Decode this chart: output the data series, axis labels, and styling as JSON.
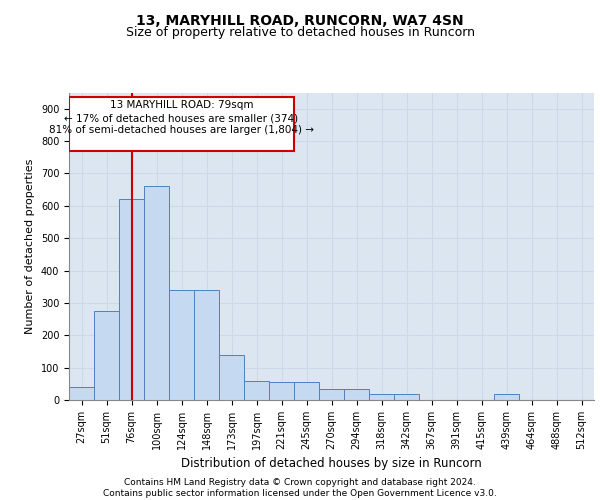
{
  "title": "13, MARYHILL ROAD, RUNCORN, WA7 4SN",
  "subtitle": "Size of property relative to detached houses in Runcorn",
  "xlabel": "Distribution of detached houses by size in Runcorn",
  "ylabel": "Number of detached properties",
  "footer_line1": "Contains HM Land Registry data © Crown copyright and database right 2024.",
  "footer_line2": "Contains public sector information licensed under the Open Government Licence v3.0.",
  "property_label": "13 MARYHILL ROAD: 79sqm",
  "annotation_line1": "← 17% of detached houses are smaller (374)",
  "annotation_line2": "81% of semi-detached houses are larger (1,804) →",
  "bin_labels": [
    "27sqm",
    "51sqm",
    "76sqm",
    "100sqm",
    "124sqm",
    "148sqm",
    "173sqm",
    "197sqm",
    "221sqm",
    "245sqm",
    "270sqm",
    "294sqm",
    "318sqm",
    "342sqm",
    "367sqm",
    "391sqm",
    "415sqm",
    "439sqm",
    "464sqm",
    "488sqm",
    "512sqm"
  ],
  "bar_values": [
    40,
    275,
    620,
    660,
    340,
    340,
    140,
    60,
    55,
    55,
    35,
    35,
    20,
    20,
    0,
    0,
    0,
    20,
    0,
    0,
    0
  ],
  "bar_color": "#c5d9f1",
  "bar_edge_color": "#4f81bd",
  "vline_color": "#cc0000",
  "vline_x_bin": 2,
  "ylim": [
    0,
    950
  ],
  "yticks": [
    0,
    100,
    200,
    300,
    400,
    500,
    600,
    700,
    800,
    900
  ],
  "grid_color": "#d0d8e8",
  "plot_bg_color": "#dce6f1",
  "title_fontsize": 10,
  "subtitle_fontsize": 9,
  "xlabel_fontsize": 8.5,
  "ylabel_fontsize": 8,
  "tick_fontsize": 7,
  "footer_fontsize": 6.5,
  "annot_fontsize": 7.5
}
